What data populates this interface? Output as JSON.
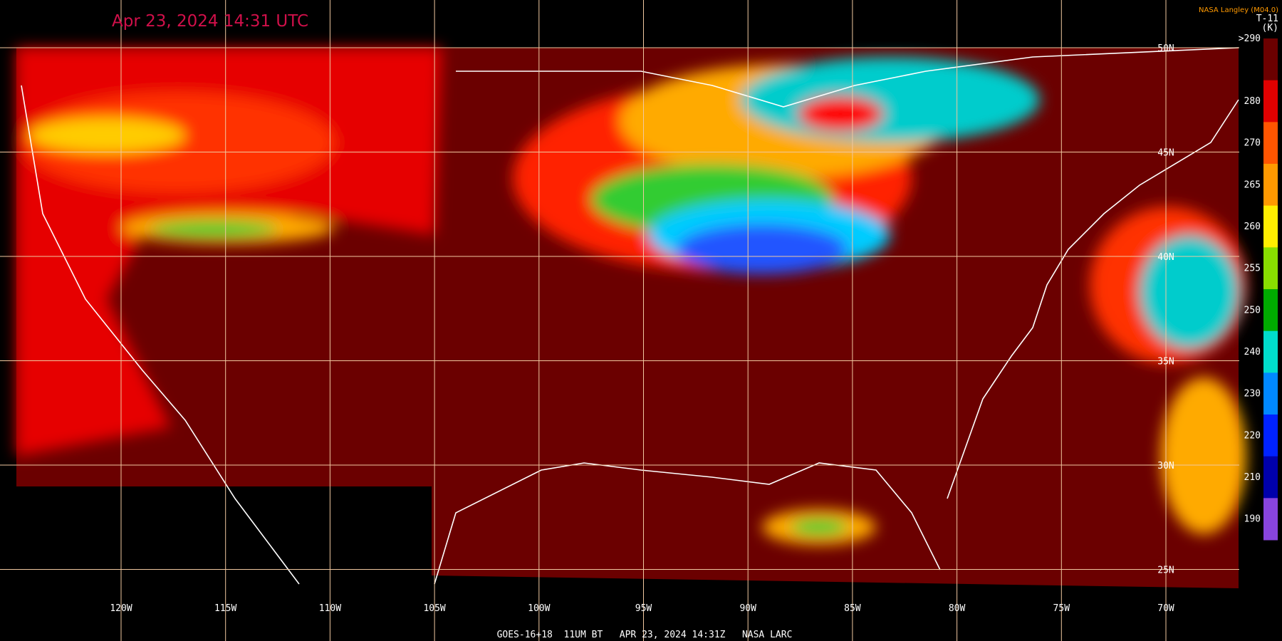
{
  "title": "Apr 23, 2024 14:31 UTC",
  "credit": "NASA Langley (M04.0)",
  "colorbar": {
    "title": "T-11",
    "unit": "(K)",
    "labels": [
      ">290",
      "280",
      "270",
      "265",
      "260",
      "255",
      "250",
      "240",
      "230",
      "220",
      "210",
      "190"
    ]
  },
  "longitude_labels": [
    "120W",
    "115W",
    "110W",
    "105W",
    "100W",
    "95W",
    "90W",
    "85W",
    "80W",
    "75W",
    "70W"
  ],
  "latitude_labels": [
    "50N",
    "45N",
    "40N",
    "35N",
    "30N",
    "25N"
  ],
  "footer": "GOES-16+18  11UM BT   APR 23, 2024 14:31Z   NASA LARC"
}
